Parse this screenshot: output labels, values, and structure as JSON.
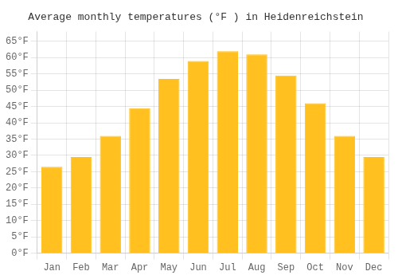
{
  "chart_data": {
    "type": "bar",
    "title": "Average monthly temperatures (°F ) in Heidenreichstein",
    "categories": [
      "Jan",
      "Feb",
      "Mar",
      "Apr",
      "May",
      "Jun",
      "Jul",
      "Aug",
      "Sep",
      "Oct",
      "Nov",
      "Dec"
    ],
    "values": [
      26.5,
      29.5,
      36.0,
      44.5,
      53.5,
      59.0,
      62.0,
      61.0,
      54.5,
      46.0,
      36.0,
      29.5
    ],
    "color": "#FFC020",
    "ylim": [
      0,
      68
    ],
    "yticks": [
      {
        "value": 0,
        "label": "0°F"
      },
      {
        "value": 5,
        "label": "5°F"
      },
      {
        "value": 10,
        "label": "10°F"
      },
      {
        "value": 15,
        "label": "15°F"
      },
      {
        "value": 20,
        "label": "20°F"
      },
      {
        "value": 25,
        "label": "25°F"
      },
      {
        "value": 30,
        "label": "30°F"
      },
      {
        "value": 35,
        "label": "35°F"
      },
      {
        "value": 40,
        "label": "40°F"
      },
      {
        "value": 45,
        "label": "45°F"
      },
      {
        "value": 50,
        "label": "50°F"
      },
      {
        "value": 55,
        "label": "55°F"
      },
      {
        "value": 60,
        "label": "60°F"
      },
      {
        "value": 65,
        "label": "65°F"
      }
    ],
    "grid": true
  }
}
